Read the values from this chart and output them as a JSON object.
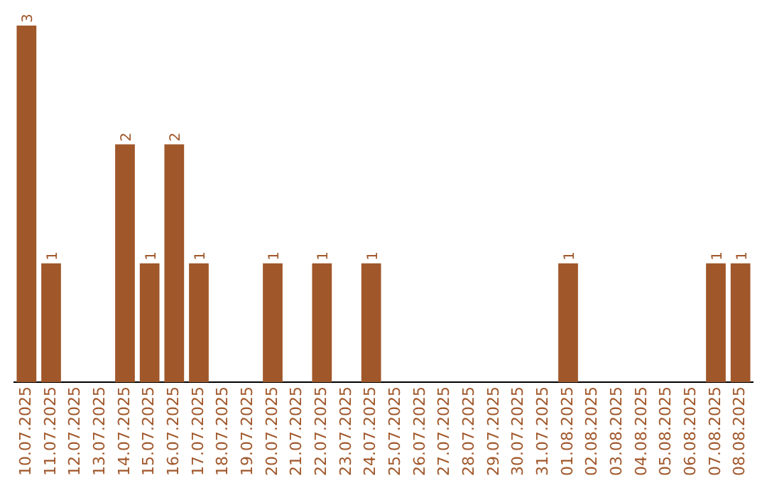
{
  "chart_data": {
    "type": "bar",
    "categories": [
      "10.07.2025",
      "11.07.2025",
      "12.07.2025",
      "13.07.2025",
      "14.07.2025",
      "15.07.2025",
      "16.07.2025",
      "17.07.2025",
      "18.07.2025",
      "19.07.2025",
      "20.07.2025",
      "21.07.2025",
      "22.07.2025",
      "23.07.2025",
      "24.07.2025",
      "25.07.2025",
      "26.07.2025",
      "27.07.2025",
      "28.07.2025",
      "29.07.2025",
      "30.07.2025",
      "31.07.2025",
      "01.08.2025",
      "02.08.2025",
      "03.08.2025",
      "04.08.2025",
      "05.08.2025",
      "06.08.2025",
      "07.08.2025",
      "08.08.2025"
    ],
    "values": [
      3,
      1,
      0,
      0,
      2,
      1,
      2,
      1,
      0,
      0,
      1,
      0,
      1,
      0,
      1,
      0,
      0,
      0,
      0,
      0,
      0,
      0,
      1,
      0,
      0,
      0,
      0,
      0,
      1,
      1
    ],
    "value_labels": [
      "3",
      "1",
      null,
      null,
      "2",
      "1",
      "2",
      "1",
      null,
      null,
      "1",
      null,
      "1",
      null,
      "1",
      null,
      null,
      null,
      null,
      null,
      null,
      null,
      "1",
      null,
      null,
      null,
      null,
      null,
      "1",
      "1"
    ],
    "color": "#a0572a",
    "grid": false,
    "legend": false
  }
}
